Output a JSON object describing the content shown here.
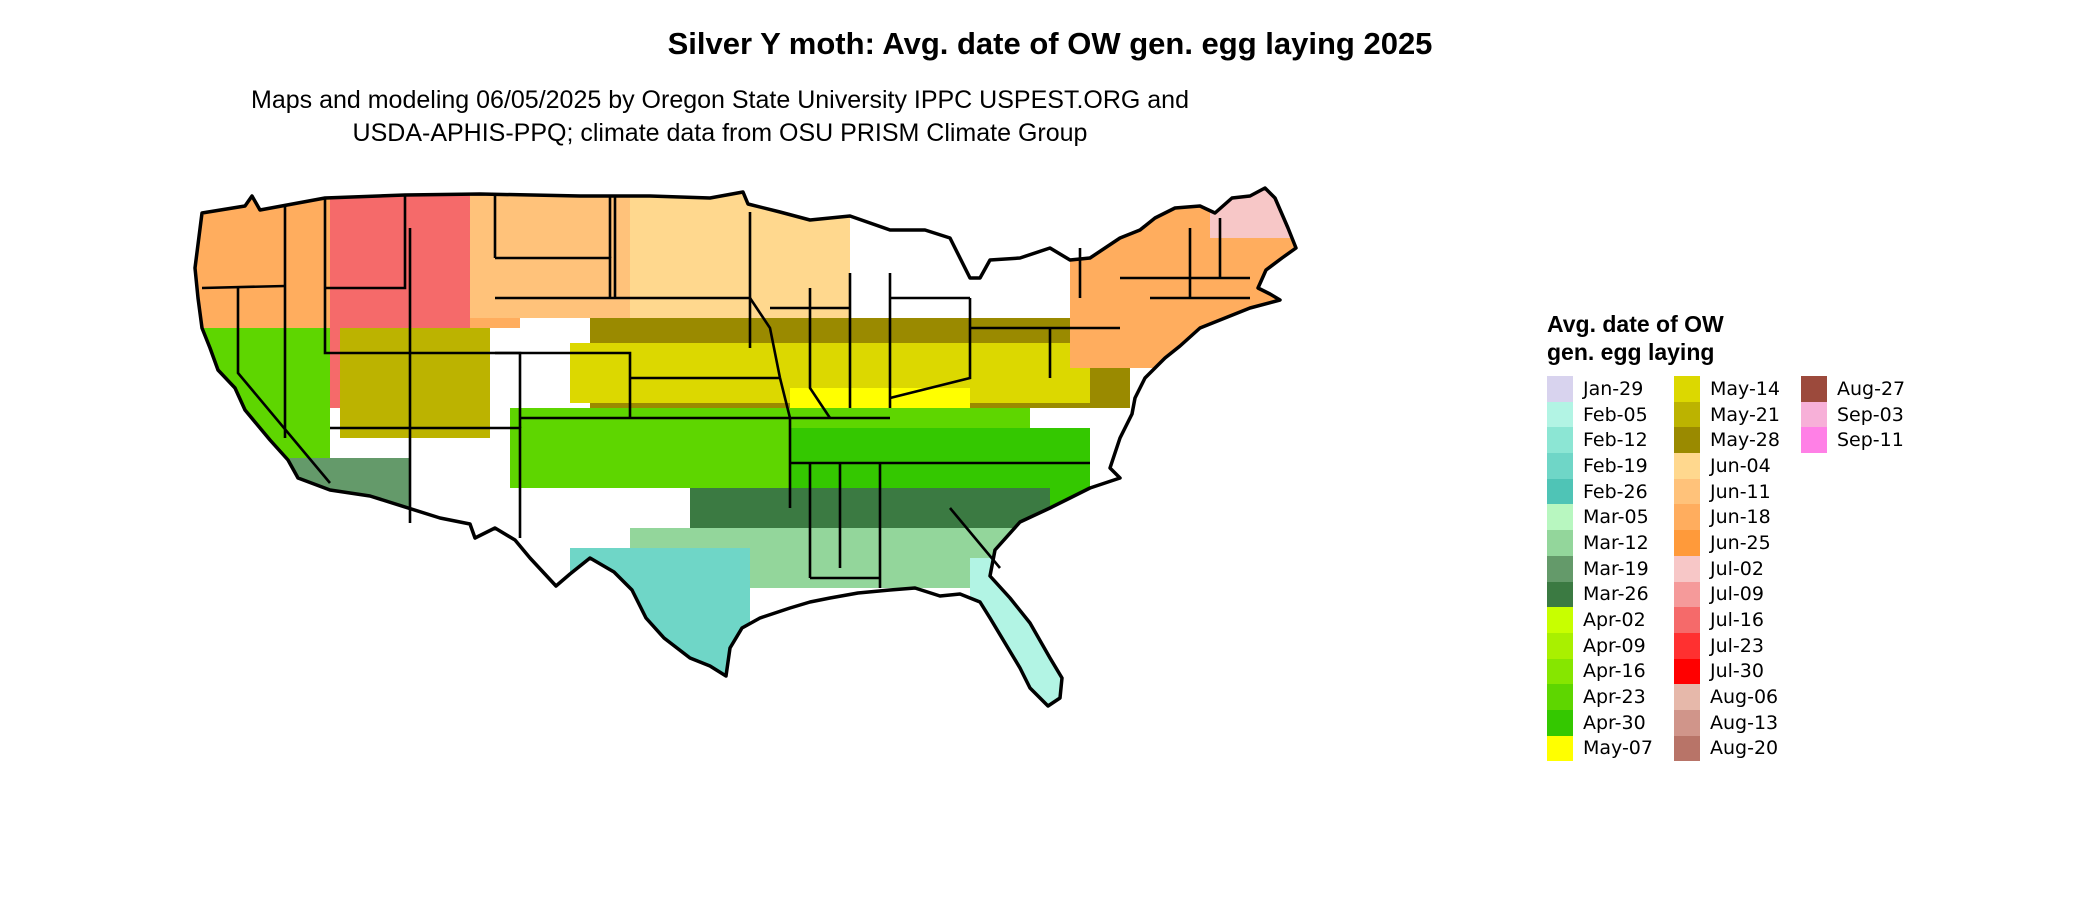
{
  "title": "Silver Y moth: Avg. date of OW gen. egg laying 2025",
  "subtitle": {
    "line1": "Maps and modeling 06/05/2025 by Oregon State University IPPC USPEST.ORG and",
    "line2": "USDA-APHIS-PPQ; climate data from OSU PRISM Climate Group"
  },
  "legend": {
    "title_line1": "Avg. date of OW",
    "title_line2": "gen. egg laying",
    "items": [
      {
        "label": "Jan-29",
        "color": "#d8d3ee"
      },
      {
        "label": "Feb-05",
        "color": "#b2f4e4"
      },
      {
        "label": "Feb-12",
        "color": "#8ce6d4"
      },
      {
        "label": "Feb-19",
        "color": "#6fd6c7"
      },
      {
        "label": "Feb-26",
        "color": "#4fc4b6"
      },
      {
        "label": "Mar-05",
        "color": "#b8f7c0"
      },
      {
        "label": "Mar-12",
        "color": "#93d69b"
      },
      {
        "label": "Mar-19",
        "color": "#649a6a"
      },
      {
        "label": "Mar-26",
        "color": "#3b7a42"
      },
      {
        "label": "Apr-02",
        "color": "#c8ff00"
      },
      {
        "label": "Apr-09",
        "color": "#a9f000"
      },
      {
        "label": "Apr-16",
        "color": "#86e600"
      },
      {
        "label": "Apr-23",
        "color": "#5ed600"
      },
      {
        "label": "Apr-30",
        "color": "#34c800"
      },
      {
        "label": "May-07",
        "color": "#ffff00"
      },
      {
        "label": "May-14",
        "color": "#dcd800"
      },
      {
        "label": "May-21",
        "color": "#bcb300"
      },
      {
        "label": "May-28",
        "color": "#9a8a00"
      },
      {
        "label": "Jun-04",
        "color": "#ffd88e"
      },
      {
        "label": "Jun-11",
        "color": "#ffc27a"
      },
      {
        "label": "Jun-18",
        "color": "#ffad5e"
      },
      {
        "label": "Jun-25",
        "color": "#ff9a3a"
      },
      {
        "label": "Jul-02",
        "color": "#f7c7c7"
      },
      {
        "label": "Jul-09",
        "color": "#f59a9a"
      },
      {
        "label": "Jul-16",
        "color": "#f56a6a"
      },
      {
        "label": "Jul-23",
        "color": "#ff3030"
      },
      {
        "label": "Jul-30",
        "color": "#ff0000"
      },
      {
        "label": "Aug-06",
        "color": "#e6b8aa"
      },
      {
        "label": "Aug-13",
        "color": "#d0958a"
      },
      {
        "label": "Aug-20",
        "color": "#b87468"
      },
      {
        "label": "Aug-27",
        "color": "#9c4a3c"
      },
      {
        "label": "Sep-03",
        "color": "#f7b0d8"
      },
      {
        "label": "Sep-11",
        "color": "#ff80e6"
      }
    ]
  },
  "map": {
    "region_colors": {
      "northwest": "#ffad5e",
      "rockies": "#f56a6a",
      "northern_plains": "#ffc27a",
      "dakotas": "#ffd88e",
      "corn_belt": "#9a8a00",
      "midwest": "#dcd800",
      "ohio_valley": "#ffff00",
      "central": "#5ed600",
      "southeast": "#34c800",
      "deep_south": "#3b7a42",
      "gulf": "#93d69b",
      "florida": "#b2f4e4",
      "texas_south": "#6fd6c7",
      "california": "#5ed600",
      "southwest_desert": "#649a6a",
      "great_basin": "#bcb300",
      "northeast": "#ffad5e",
      "maine": "#f7c7c7"
    }
  }
}
